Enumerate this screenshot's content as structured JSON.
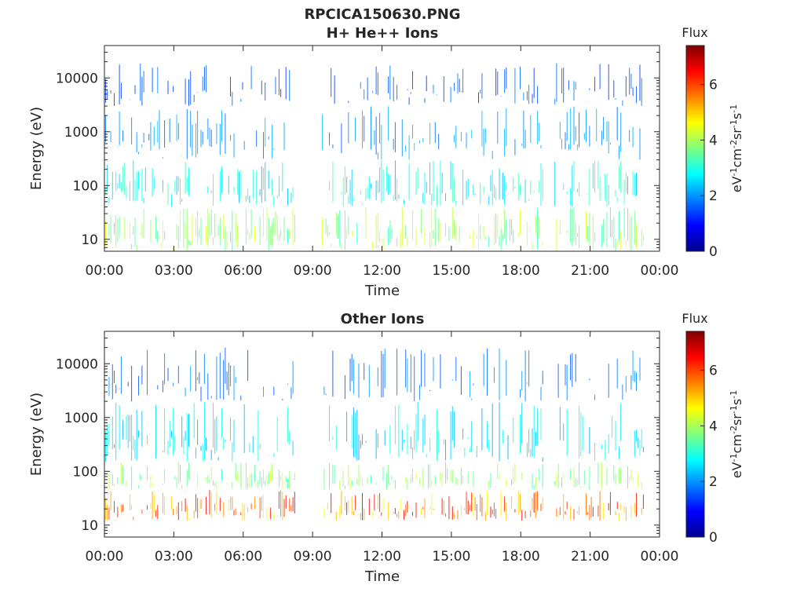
{
  "figure": {
    "title": "RPCICA150630.PNG"
  },
  "chart_data": [
    {
      "type": "heatmap",
      "title": "H+ He++ Ions",
      "xlabel": "Time",
      "ylabel": "Energy (eV)",
      "x_ticks": [
        "00:00",
        "03:00",
        "06:00",
        "09:00",
        "12:00",
        "15:00",
        "18:00",
        "21:00",
        "00:00"
      ],
      "x_range_hours": [
        0,
        24
      ],
      "y_scale": "log",
      "y_ticks": [
        "10",
        "100",
        "1000",
        "10000"
      ],
      "y_range": [
        6,
        40000
      ],
      "data_gaps_hours": [
        [
          8.3,
          9.4
        ],
        [
          19.0,
          19.4
        ],
        [
          23.3,
          24
        ]
      ],
      "colorbar": {
        "title": "Flux",
        "label": "eV-1cm-2sr-1s-1",
        "ticks": [
          "0",
          "2",
          "4",
          "6"
        ],
        "range": [
          0,
          7.4
        ],
        "colormap": "jet"
      },
      "summary_by_energy": [
        {
          "energy_range_eV": [
            6,
            40
          ],
          "typical_flux": 3.8
        },
        {
          "energy_range_eV": [
            40,
            300
          ],
          "typical_flux": 2.8
        },
        {
          "energy_range_eV": [
            300,
            3000
          ],
          "typical_flux": 2.0
        },
        {
          "energy_range_eV": [
            3000,
            20000
          ],
          "typical_flux": 1.6
        }
      ]
    },
    {
      "type": "heatmap",
      "title": "Other Ions",
      "xlabel": "Time",
      "ylabel": "Energy (eV)",
      "x_ticks": [
        "00:00",
        "03:00",
        "06:00",
        "09:00",
        "12:00",
        "15:00",
        "18:00",
        "21:00",
        "00:00"
      ],
      "x_range_hours": [
        0,
        24
      ],
      "y_scale": "log",
      "y_ticks": [
        "10",
        "100",
        "1000",
        "10000"
      ],
      "y_range": [
        6,
        40000
      ],
      "data_gaps_hours": [
        [
          8.3,
          9.4
        ],
        [
          19.0,
          19.4
        ],
        [
          23.3,
          24
        ]
      ],
      "colorbar": {
        "title": "Flux",
        "label": "eV-1cm-2sr-1s-1",
        "ticks": [
          "0",
          "2",
          "4",
          "6"
        ],
        "range": [
          0,
          7.4
        ],
        "colormap": "jet"
      },
      "summary_by_energy": [
        {
          "energy_range_eV": [
            12,
            45
          ],
          "typical_flux": 5.6
        },
        {
          "energy_range_eV": [
            45,
            150
          ],
          "typical_flux": 3.8
        },
        {
          "energy_range_eV": [
            150,
            2000
          ],
          "typical_flux": 2.6
        },
        {
          "energy_range_eV": [
            2000,
            20000
          ],
          "typical_flux": 1.8
        }
      ]
    }
  ]
}
